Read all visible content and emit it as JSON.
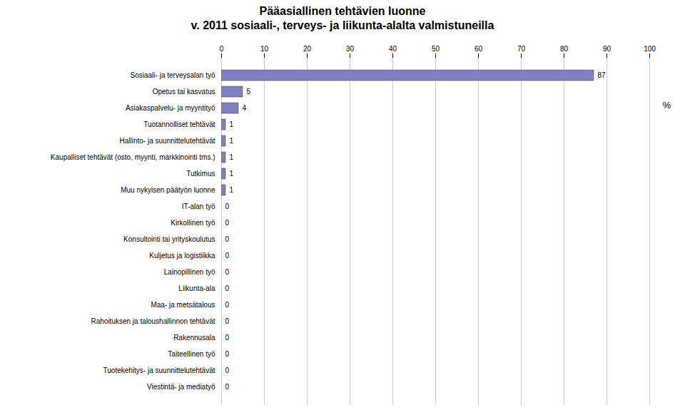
{
  "chart_data": {
    "type": "bar",
    "orientation": "horizontal",
    "title": "Pääasiallinen tehtävien luonne",
    "subtitle": "v. 2011 sosiaali-, terveys- ja liikunta-alalta valmistuneilla",
    "categories": [
      "Sosiaali- ja terveysalan työ",
      "Opetus tai kasvatus",
      "Asiakaspalvelu- ja myyntityö",
      "Tuotannolliset tehtävät",
      "Hallinto- ja suunnittelutehtävät",
      "Kaupalliset tehtävät (osto, myynti, markkinointi tms.)",
      "Tutkimus",
      "Muu nykyisen päätyön luonne",
      "IT-alan työ",
      "Kirkollinen työ",
      "Konsultointi tai yrityskoulutus",
      "Kuljetus ja logistiikka",
      "Lainopillinen työ",
      "Liikunta-ala",
      "Maa- ja metsätalous",
      "Rahoituksen ja taloushallinnon tehtävät",
      "Rakennusala",
      "Taiteellinen työ",
      "Tuotekehitys- ja suunnittelutehtävät",
      "Viestintä- ja mediatyö"
    ],
    "values": [
      87,
      5,
      4,
      1,
      1,
      1,
      1,
      1,
      0,
      0,
      0,
      0,
      0,
      0,
      0,
      0,
      0,
      0,
      0,
      0
    ],
    "color": "#8080c0",
    "xlim": [
      0,
      100
    ],
    "xticks": [
      0,
      10,
      20,
      30,
      40,
      50,
      60,
      70,
      80,
      90,
      100
    ],
    "grid": true,
    "data_labels": true,
    "annotations": [
      "%"
    ]
  }
}
